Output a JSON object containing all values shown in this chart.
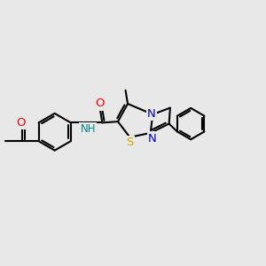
{
  "bg_color": "#e8e8e8",
  "bond_color": "#000000",
  "bond_width": 1.5,
  "atom_colors": {
    "O": "#ff0000",
    "N": "#0000cc",
    "S": "#ccaa00",
    "C": "#000000",
    "H": "#008888"
  },
  "font_size": 8.5,
  "fig_size": [
    3.0,
    3.0
  ],
  "dpi": 100,
  "xlim": [
    0,
    12
  ],
  "ylim": [
    0,
    10
  ]
}
